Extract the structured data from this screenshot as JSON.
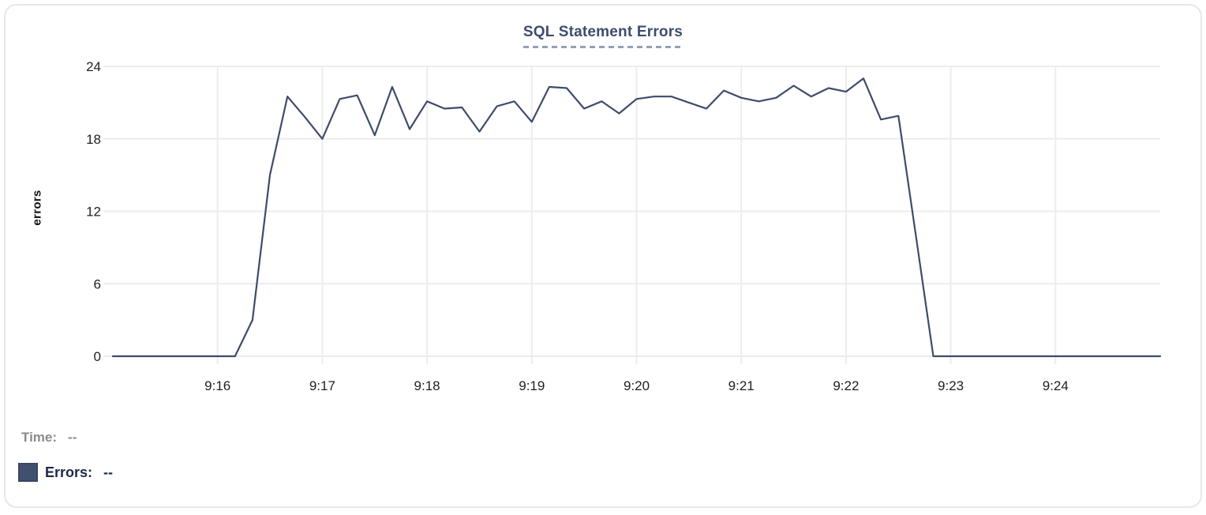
{
  "chart_data": {
    "type": "line",
    "title": "SQL Statement Errors",
    "xlabel": "",
    "ylabel": "errors",
    "grid": true,
    "legend_position": "bottom-left",
    "ylim": [
      0,
      24
    ],
    "yticks": [
      0,
      6,
      12,
      18,
      24
    ],
    "xlim": [
      "9:15:00",
      "9:25:00"
    ],
    "xticks": [
      "9:16",
      "9:17",
      "9:18",
      "9:19",
      "9:20",
      "9:21",
      "9:22",
      "9:23",
      "9:24"
    ],
    "series": [
      {
        "name": "Errors",
        "color": "#3e4c6b",
        "x": [
          "9:15:00",
          "9:15:10",
          "9:15:20",
          "9:15:30",
          "9:15:40",
          "9:15:50",
          "9:16:00",
          "9:16:10",
          "9:16:20",
          "9:16:30",
          "9:16:40",
          "9:16:50",
          "9:17:00",
          "9:17:10",
          "9:17:20",
          "9:17:30",
          "9:17:40",
          "9:17:50",
          "9:18:00",
          "9:18:10",
          "9:18:20",
          "9:18:30",
          "9:18:40",
          "9:18:50",
          "9:19:00",
          "9:19:10",
          "9:19:20",
          "9:19:30",
          "9:19:40",
          "9:19:50",
          "9:20:00",
          "9:20:10",
          "9:20:20",
          "9:20:30",
          "9:20:40",
          "9:20:50",
          "9:21:00",
          "9:21:10",
          "9:21:20",
          "9:21:30",
          "9:21:40",
          "9:21:50",
          "9:22:00",
          "9:22:10",
          "9:22:20",
          "9:22:30",
          "9:22:40",
          "9:22:50",
          "9:23:00",
          "9:23:10",
          "9:23:20",
          "9:23:30",
          "9:23:40",
          "9:23:50",
          "9:24:00",
          "9:24:10",
          "9:24:20",
          "9:24:30",
          "9:24:40",
          "9:24:50",
          "9:25:00"
        ],
        "values": [
          0,
          0,
          0,
          0,
          0,
          0,
          0,
          0,
          3,
          15,
          21.5,
          19.8,
          18,
          21.3,
          21.6,
          18.3,
          22.3,
          18.8,
          21.1,
          20.5,
          20.6,
          18.6,
          20.7,
          21.1,
          19.4,
          22.3,
          22.2,
          20.5,
          21.1,
          20.1,
          21.3,
          21.5,
          21.5,
          21.0,
          20.5,
          22.0,
          21.4,
          21.1,
          21.4,
          22.4,
          21.5,
          22.2,
          21.9,
          23.0,
          19.6,
          19.9,
          10,
          0,
          0,
          0,
          0,
          0,
          0,
          0,
          0,
          0,
          0,
          0,
          0,
          0,
          0
        ]
      }
    ]
  },
  "tooltip": {
    "time_label": "Time:",
    "time_value": "--",
    "errors_label": "Errors:",
    "errors_value": "--"
  },
  "colors": {
    "line": "#3e4c6b",
    "swatch": "#415070",
    "grid": "#ececec",
    "title": "#3e4d6e",
    "axis_text": "#212121",
    "muted_text": "#8a8a8a",
    "legend_text": "#1d2848",
    "card_border": "#e6e7ea",
    "title_underline": "#94a0b8"
  }
}
